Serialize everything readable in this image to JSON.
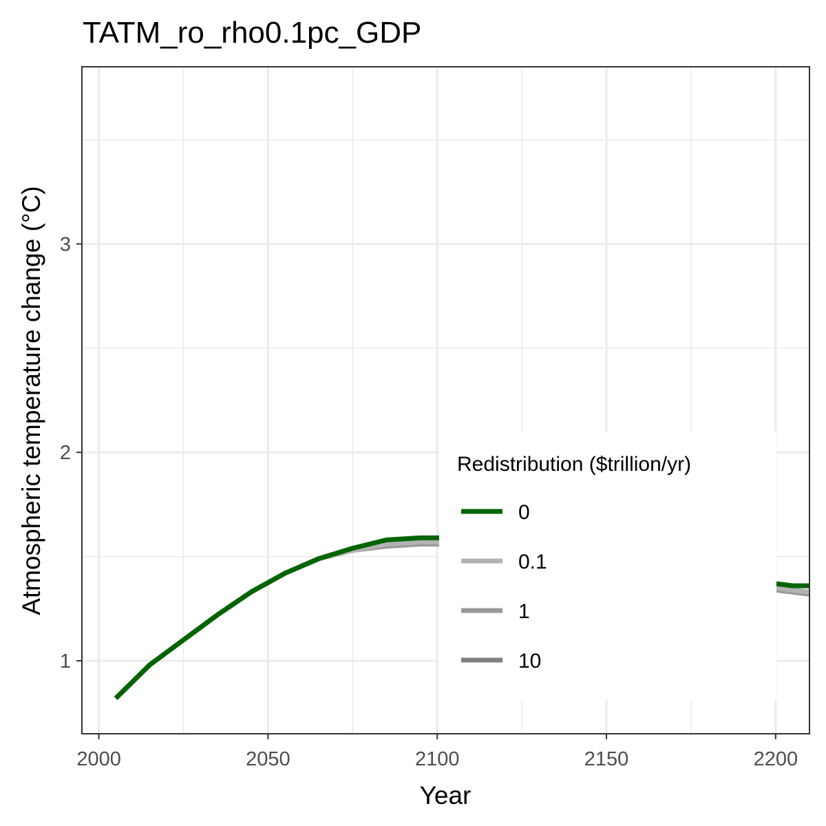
{
  "chart_data": {
    "type": "line",
    "title": "TATM_ro_rho0.1pc_GDP",
    "xlabel": "Year",
    "ylabel": "Atmospheric temperature change (°C)",
    "xlim": [
      1995,
      2210
    ],
    "ylim": [
      0.65,
      3.85
    ],
    "xticks": [
      2000,
      2050,
      2100,
      2150,
      2200
    ],
    "xtick_labels": [
      "2000",
      "2050",
      "2100",
      "2150",
      "2200"
    ],
    "yticks": [
      1,
      2,
      3
    ],
    "ytick_labels": [
      "1",
      "2",
      "3"
    ],
    "grid": true,
    "legend": {
      "title": "Redistribution ($trillion/yr)",
      "position": "center-right, inside plot"
    },
    "x": [
      2005,
      2015,
      2025,
      2035,
      2045,
      2055,
      2065,
      2075,
      2085,
      2095,
      2105,
      2115,
      2125,
      2135,
      2145,
      2155,
      2165,
      2175,
      2185,
      2195,
      2205,
      2210
    ],
    "series": [
      {
        "name": "0",
        "color": "#006400",
        "values": [
          0.82,
          0.98,
          1.1,
          1.22,
          1.33,
          1.42,
          1.49,
          1.54,
          1.58,
          1.59,
          1.59,
          1.58,
          1.56,
          1.54,
          1.51,
          1.49,
          1.46,
          1.44,
          1.41,
          1.38,
          1.36,
          1.36
        ]
      },
      {
        "name": "0.1",
        "color": "#b3b3b3",
        "values": [
          0.82,
          0.98,
          1.1,
          1.22,
          1.33,
          1.42,
          1.49,
          1.53,
          1.56,
          1.57,
          1.57,
          1.56,
          1.54,
          1.52,
          1.49,
          1.47,
          1.44,
          1.42,
          1.39,
          1.36,
          1.34,
          1.33
        ]
      },
      {
        "name": "1",
        "color": "#999999",
        "values": [
          0.82,
          0.98,
          1.1,
          1.22,
          1.33,
          1.42,
          1.49,
          1.53,
          1.55,
          1.56,
          1.56,
          1.55,
          1.53,
          1.51,
          1.48,
          1.46,
          1.43,
          1.41,
          1.38,
          1.35,
          1.33,
          1.32
        ]
      },
      {
        "name": "10",
        "color": "#808080",
        "values": [
          0.82,
          0.98,
          1.1,
          1.22,
          1.33,
          1.42,
          1.49,
          1.53,
          1.55,
          1.56,
          1.56,
          1.55,
          1.53,
          1.51,
          1.48,
          1.46,
          1.43,
          1.41,
          1.38,
          1.35,
          1.33,
          1.32
        ]
      }
    ]
  }
}
